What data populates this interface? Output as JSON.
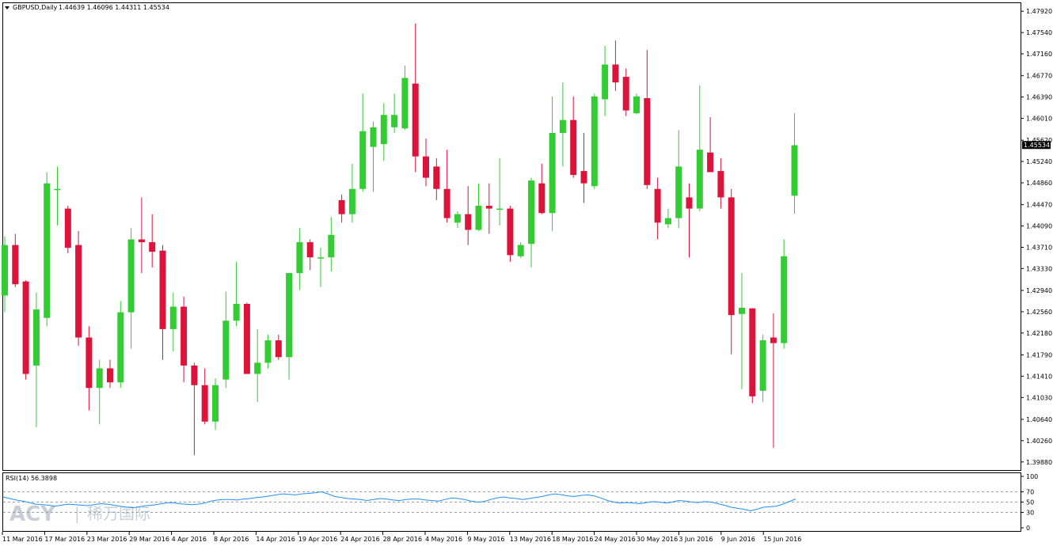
{
  "header": {
    "symbol": "GBPUSD,Daily",
    "ohlc": "1.44639 1.46096 1.44311 1.45534"
  },
  "rsi_header": "RSI(14) 56.3898",
  "watermark": {
    "logo": "ACY",
    "divider": "|",
    "cjk": "稀万国际"
  },
  "colors": {
    "bull": "#33cc33",
    "bear": "#dc143c",
    "rsi_line": "#1e90ff",
    "current_price_bg": "#000000"
  },
  "current_price_label": "1.45534",
  "chart_data": [
    {
      "type": "candlestick",
      "title": "GBPUSD,Daily",
      "ylim": [
        1.3975,
        1.4805
      ],
      "y_tick_labels": [
        "1.47920",
        "1.47540",
        "1.47160",
        "1.46770",
        "1.46390",
        "1.46010",
        "1.45620",
        "1.45240",
        "1.44860",
        "1.44470",
        "1.44090",
        "1.43710",
        "1.43330",
        "1.42940",
        "1.42560",
        "1.42180",
        "1.41790",
        "1.41410",
        "1.41030",
        "1.40640",
        "1.40260",
        "1.39880"
      ],
      "x_tick_labels": [
        "11 Mar 2016",
        "17 Mar 2016",
        "23 Mar 2016",
        "29 Mar 2016",
        "4 Apr 2016",
        "8 Apr 2016",
        "14 Apr 2016",
        "19 Apr 2016",
        "24 Apr 2016",
        "28 Apr 2016",
        "4 May 2016",
        "9 May 2016",
        "13 May 2016",
        "18 May 2016",
        "24 May 2016",
        "30 May 2016",
        "3 Jun 2016",
        "9 Jun 2016",
        "15 Jun 2016"
      ],
      "candles": [
        {
          "o": 1.4285,
          "h": 1.439,
          "l": 1.4255,
          "c": 1.4375
        },
        {
          "o": 1.4375,
          "h": 1.4395,
          "l": 1.43,
          "c": 1.4305
        },
        {
          "o": 1.431,
          "h": 1.4312,
          "l": 1.4135,
          "c": 1.4145
        },
        {
          "o": 1.416,
          "h": 1.429,
          "l": 1.405,
          "c": 1.426
        },
        {
          "o": 1.4245,
          "h": 1.4505,
          "l": 1.423,
          "c": 1.4485
        },
        {
          "o": 1.4475,
          "h": 1.4515,
          "l": 1.441,
          "c": 1.4475
        },
        {
          "o": 1.444,
          "h": 1.4445,
          "l": 1.436,
          "c": 1.437
        },
        {
          "o": 1.4375,
          "h": 1.44,
          "l": 1.4195,
          "c": 1.421
        },
        {
          "o": 1.421,
          "h": 1.423,
          "l": 1.408,
          "c": 1.412
        },
        {
          "o": 1.412,
          "h": 1.417,
          "l": 1.4055,
          "c": 1.4155
        },
        {
          "o": 1.4155,
          "h": 1.417,
          "l": 1.412,
          "c": 1.413
        },
        {
          "o": 1.413,
          "h": 1.4275,
          "l": 1.412,
          "c": 1.4255
        },
        {
          "o": 1.4255,
          "h": 1.4405,
          "l": 1.419,
          "c": 1.4385
        },
        {
          "o": 1.4385,
          "h": 1.446,
          "l": 1.4325,
          "c": 1.438
        },
        {
          "o": 1.438,
          "h": 1.443,
          "l": 1.4335,
          "c": 1.4363
        },
        {
          "o": 1.4365,
          "h": 1.4375,
          "l": 1.417,
          "c": 1.4225
        },
        {
          "o": 1.4225,
          "h": 1.429,
          "l": 1.4185,
          "c": 1.4265
        },
        {
          "o": 1.4265,
          "h": 1.4283,
          "l": 1.413,
          "c": 1.416
        },
        {
          "o": 1.416,
          "h": 1.4165,
          "l": 1.4,
          "c": 1.4125
        },
        {
          "o": 1.4125,
          "h": 1.4155,
          "l": 1.4055,
          "c": 1.406
        },
        {
          "o": 1.406,
          "h": 1.4137,
          "l": 1.4045,
          "c": 1.4125
        },
        {
          "o": 1.4135,
          "h": 1.4292,
          "l": 1.412,
          "c": 1.424
        },
        {
          "o": 1.424,
          "h": 1.4345,
          "l": 1.423,
          "c": 1.427
        },
        {
          "o": 1.427,
          "h": 1.4272,
          "l": 1.4145,
          "c": 1.4145
        },
        {
          "o": 1.4145,
          "h": 1.4225,
          "l": 1.4095,
          "c": 1.4165
        },
        {
          "o": 1.4165,
          "h": 1.4215,
          "l": 1.4155,
          "c": 1.4205
        },
        {
          "o": 1.4205,
          "h": 1.4215,
          "l": 1.417,
          "c": 1.4175
        },
        {
          "o": 1.4175,
          "h": 1.4325,
          "l": 1.4135,
          "c": 1.4325
        },
        {
          "o": 1.4325,
          "h": 1.4405,
          "l": 1.4295,
          "c": 1.438
        },
        {
          "o": 1.438,
          "h": 1.4385,
          "l": 1.433,
          "c": 1.4353
        },
        {
          "o": 1.4353,
          "h": 1.437,
          "l": 1.43,
          "c": 1.4353
        },
        {
          "o": 1.4353,
          "h": 1.4425,
          "l": 1.4328,
          "c": 1.4393
        },
        {
          "o": 1.4455,
          "h": 1.4465,
          "l": 1.4415,
          "c": 1.443
        },
        {
          "o": 1.443,
          "h": 1.452,
          "l": 1.4415,
          "c": 1.4475
        },
        {
          "o": 1.4475,
          "h": 1.4645,
          "l": 1.447,
          "c": 1.4578
        },
        {
          "o": 1.455,
          "h": 1.4595,
          "l": 1.447,
          "c": 1.4585
        },
        {
          "o": 1.4555,
          "h": 1.4628,
          "l": 1.4525,
          "c": 1.4607
        },
        {
          "o": 1.4585,
          "h": 1.4645,
          "l": 1.4575,
          "c": 1.4607
        },
        {
          "o": 1.4583,
          "h": 1.4695,
          "l": 1.458,
          "c": 1.4673
        },
        {
          "o": 1.4663,
          "h": 1.477,
          "l": 1.4505,
          "c": 1.4533
        },
        {
          "o": 1.4533,
          "h": 1.4565,
          "l": 1.448,
          "c": 1.4495
        },
        {
          "o": 1.4515,
          "h": 1.453,
          "l": 1.4455,
          "c": 1.4475
        },
        {
          "o": 1.4475,
          "h": 1.4545,
          "l": 1.4415,
          "c": 1.4423
        },
        {
          "o": 1.4415,
          "h": 1.4435,
          "l": 1.4405,
          "c": 1.443
        },
        {
          "o": 1.443,
          "h": 1.448,
          "l": 1.4375,
          "c": 1.4402
        },
        {
          "o": 1.4402,
          "h": 1.4485,
          "l": 1.44,
          "c": 1.4445
        },
        {
          "o": 1.4445,
          "h": 1.4485,
          "l": 1.4395,
          "c": 1.444
        },
        {
          "o": 1.444,
          "h": 1.453,
          "l": 1.441,
          "c": 1.444
        },
        {
          "o": 1.444,
          "h": 1.4445,
          "l": 1.4345,
          "c": 1.4357
        },
        {
          "o": 1.4355,
          "h": 1.438,
          "l": 1.4352,
          "c": 1.4375
        },
        {
          "o": 1.4377,
          "h": 1.4495,
          "l": 1.4335,
          "c": 1.449
        },
        {
          "o": 1.4485,
          "h": 1.452,
          "l": 1.443,
          "c": 1.4432
        },
        {
          "o": 1.4432,
          "h": 1.464,
          "l": 1.44,
          "c": 1.4575
        },
        {
          "o": 1.4575,
          "h": 1.4665,
          "l": 1.4515,
          "c": 1.4598
        },
        {
          "o": 1.4598,
          "h": 1.464,
          "l": 1.4495,
          "c": 1.45
        },
        {
          "o": 1.4507,
          "h": 1.4575,
          "l": 1.445,
          "c": 1.4485
        },
        {
          "o": 1.448,
          "h": 1.4645,
          "l": 1.4475,
          "c": 1.464
        },
        {
          "o": 1.4635,
          "h": 1.473,
          "l": 1.4605,
          "c": 1.4697
        },
        {
          "o": 1.4697,
          "h": 1.474,
          "l": 1.465,
          "c": 1.4665
        },
        {
          "o": 1.4675,
          "h": 1.469,
          "l": 1.4605,
          "c": 1.4615
        },
        {
          "o": 1.461,
          "h": 1.4645,
          "l": 1.4608,
          "c": 1.464
        },
        {
          "o": 1.4637,
          "h": 1.4723,
          "l": 1.4475,
          "c": 1.4482
        },
        {
          "o": 1.4475,
          "h": 1.4495,
          "l": 1.4385,
          "c": 1.4415
        },
        {
          "o": 1.4412,
          "h": 1.444,
          "l": 1.4405,
          "c": 1.4423
        },
        {
          "o": 1.4423,
          "h": 1.458,
          "l": 1.4405,
          "c": 1.4515
        },
        {
          "o": 1.446,
          "h": 1.4485,
          "l": 1.4353,
          "c": 1.444
        },
        {
          "o": 1.444,
          "h": 1.466,
          "l": 1.4435,
          "c": 1.4545
        },
        {
          "o": 1.454,
          "h": 1.4603,
          "l": 1.451,
          "c": 1.4505
        },
        {
          "o": 1.4507,
          "h": 1.453,
          "l": 1.444,
          "c": 1.446
        },
        {
          "o": 1.446,
          "h": 1.4475,
          "l": 1.418,
          "c": 1.425
        },
        {
          "o": 1.4252,
          "h": 1.4325,
          "l": 1.4118,
          "c": 1.4263
        },
        {
          "o": 1.4262,
          "h": 1.4262,
          "l": 1.4093,
          "c": 1.4105
        },
        {
          "o": 1.4115,
          "h": 1.4215,
          "l": 1.4095,
          "c": 1.4205
        },
        {
          "o": 1.421,
          "h": 1.4253,
          "l": 1.4013,
          "c": 1.42
        },
        {
          "o": 1.42,
          "h": 1.4385,
          "l": 1.419,
          "c": 1.4355
        },
        {
          "o": 1.4463,
          "h": 1.461,
          "l": 1.4431,
          "c": 1.4553
        }
      ]
    },
    {
      "type": "line",
      "title": "RSI(14) 56.3898",
      "ylim": [
        0,
        100
      ],
      "y_tick_labels": [
        "100",
        "70",
        "50",
        "30",
        "0"
      ],
      "levels": [
        70,
        50,
        30
      ],
      "values": [
        60,
        57,
        54,
        52,
        49,
        46,
        45,
        44,
        42,
        44,
        46,
        45,
        44,
        43,
        45,
        47,
        46,
        44,
        42,
        40,
        39,
        41,
        43,
        44,
        46,
        48,
        49,
        47,
        46,
        45,
        46,
        48,
        52,
        54,
        55,
        55,
        54,
        56,
        57,
        59,
        60,
        62,
        64,
        66,
        65,
        64,
        66,
        67,
        68,
        70,
        66,
        61,
        59,
        57,
        56,
        55,
        53,
        55,
        57,
        56,
        54,
        53,
        55,
        56,
        56,
        54,
        53,
        52,
        55,
        58,
        57,
        55,
        52,
        50,
        51,
        55,
        58,
        60,
        58,
        57,
        55,
        57,
        59,
        61,
        64,
        66,
        64,
        62,
        61,
        63,
        64,
        62,
        58,
        53,
        50,
        48,
        49,
        48,
        47,
        49,
        51,
        50,
        48,
        50,
        53,
        52,
        50,
        49,
        51,
        50,
        47,
        44,
        40,
        38,
        36,
        33,
        36,
        40,
        41,
        42,
        46,
        51,
        56
      ]
    }
  ]
}
